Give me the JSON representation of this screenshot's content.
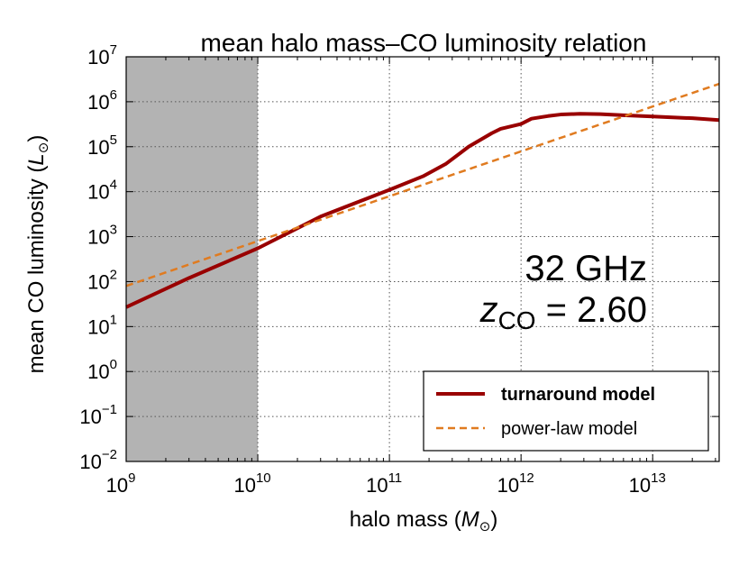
{
  "chart_data": {
    "type": "line",
    "title": "mean halo mass–CO luminosity relation",
    "xlabel": {
      "text": "halo mass (",
      "symbol": "M",
      "subscript": "⊙",
      "close": ")"
    },
    "ylabel": {
      "text": "mean CO luminosity (",
      "symbol": "L",
      "subscript": "⊙",
      "close": ")"
    },
    "xscale": "log",
    "yscale": "log",
    "xlim": [
      1000000000.0,
      32000000000000.0
    ],
    "ylim": [
      0.01,
      10000000.0
    ],
    "grid": true,
    "x_ticks": [
      {
        "base": "10",
        "exp": "9",
        "value": 1000000000.0
      },
      {
        "base": "10",
        "exp": "10",
        "value": 10000000000.0
      },
      {
        "base": "10",
        "exp": "11",
        "value": 100000000000.0
      },
      {
        "base": "10",
        "exp": "12",
        "value": 1000000000000.0
      },
      {
        "base": "10",
        "exp": "13",
        "value": 10000000000000.0
      }
    ],
    "y_ticks": [
      {
        "base": "10",
        "exp": "−2",
        "value": 0.01
      },
      {
        "base": "10",
        "exp": "−1",
        "value": 0.1
      },
      {
        "base": "10",
        "exp": "0",
        "value": 1
      },
      {
        "base": "10",
        "exp": "1",
        "value": 10
      },
      {
        "base": "10",
        "exp": "2",
        "value": 100
      },
      {
        "base": "10",
        "exp": "3",
        "value": 1000
      },
      {
        "base": "10",
        "exp": "4",
        "value": 10000
      },
      {
        "base": "10",
        "exp": "5",
        "value": 100000
      },
      {
        "base": "10",
        "exp": "6",
        "value": 1000000
      },
      {
        "base": "10",
        "exp": "7",
        "value": 10000000
      }
    ],
    "shaded_region": {
      "x": [
        1000000000.0,
        10000000000.0
      ],
      "color": "#b3b3b3"
    },
    "series": [
      {
        "name": "turnaround model",
        "color": "#990000",
        "style": "solid",
        "x": [
          1000000000.0,
          3000000000.0,
          10000000000.0,
          30000000000.0,
          100000000000.0,
          180000000000.0,
          270000000000.0,
          400000000000.0,
          600000000000.0,
          700000000000.0,
          1000000000000.0,
          1200000000000.0,
          1600000000000.0,
          2000000000000.0,
          2800000000000.0,
          4000000000000.0,
          6000000000000.0,
          10000000000000.0,
          20000000000000.0,
          32000000000000.0
        ],
        "y": [
          27,
          120,
          550,
          2800,
          11000,
          22000,
          42000,
          100000,
          200000,
          250000,
          320000,
          420000,
          480000,
          520000,
          540000,
          530000,
          500000,
          470000,
          430000,
          390000
        ]
      },
      {
        "name": "power-law model",
        "color": "#e07b20",
        "style": "dashed",
        "x": [
          1000000000.0,
          32000000000000.0
        ],
        "y": [
          80,
          2500000
        ]
      }
    ],
    "legend": {
      "position": "lower-right",
      "entries": [
        {
          "label": "turnaround model",
          "bold": true
        },
        {
          "label": "power-law model",
          "bold": false
        }
      ]
    },
    "annotations": {
      "frequency": "32 GHz",
      "redshift_symbol": "z",
      "redshift_sub": "CO",
      "redshift_value": " = 2.60"
    }
  }
}
